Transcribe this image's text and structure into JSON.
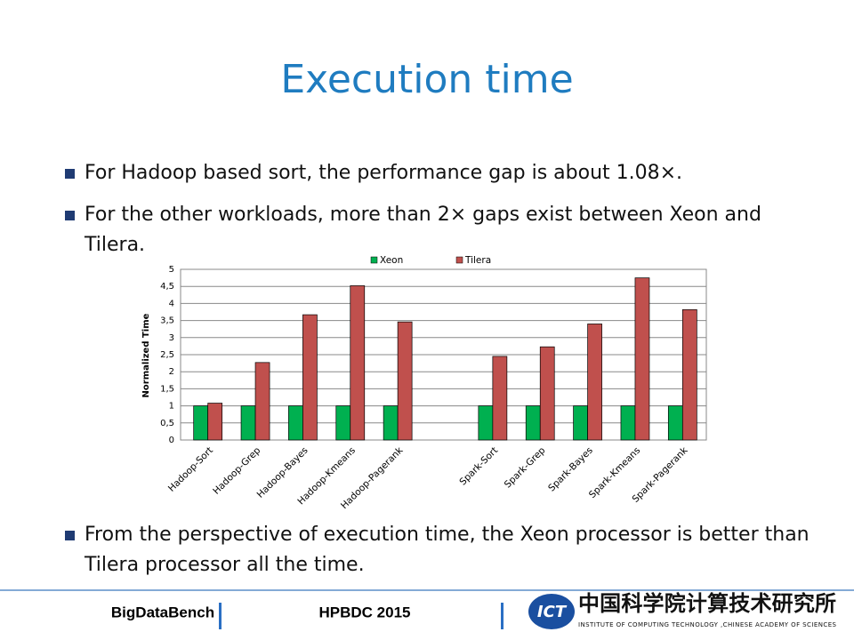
{
  "title": "Execution time",
  "bullets": [
    "For Hadoop based sort, the performance gap is about 1.08×.",
    "For the other workloads, more than 2× gaps exist between Xeon and Tilera.",
    "From the perspective of execution time, the Xeon processor is better than Tilera processor all the time."
  ],
  "chart_data": {
    "type": "bar",
    "y_label": "Normalized Time",
    "categories": [
      "Hadoop-Sort",
      "Hadoop-Grep",
      "Hadoop-Bayes",
      "Hadoop-Kmeans",
      "Hadoop-Pagerank",
      null,
      "Spark-Sort",
      "Spark-Grep",
      "Spark-Bayes",
      "Spark-Kmeans",
      "Spark-Pagerank"
    ],
    "series": [
      {
        "name": "Xeon",
        "color": "#00b050",
        "values": [
          1,
          1,
          1,
          1,
          1,
          null,
          1,
          1,
          1,
          1,
          1
        ]
      },
      {
        "name": "Tilera",
        "color": "#c0504d",
        "values": [
          1.08,
          2.27,
          3.67,
          4.52,
          3.46,
          null,
          2.45,
          2.73,
          3.4,
          4.75,
          3.82
        ]
      }
    ],
    "ylim": [
      0,
      5
    ],
    "yticks": [
      0,
      {
        "value": 0.5,
        "label": "0,5"
      },
      1,
      {
        "value": 1.5,
        "label": "1,5"
      },
      2,
      {
        "value": 2.5,
        "label": "2,5"
      },
      3,
      {
        "value": 3.5,
        "label": "3,5"
      },
      4,
      {
        "value": 4.5,
        "label": "4,5"
      },
      5
    ],
    "grid": true,
    "legend": "top"
  },
  "footer": {
    "left": "BigDataBench",
    "center": "HPBDC 2015",
    "logo": "ICT",
    "institute_cn": "中国科学院计算技术研究所",
    "institute_en": "INSTITUTE OF COMPUTING TECHNOLOGY ,CHINESE ACADEMY OF SCIENCES"
  }
}
